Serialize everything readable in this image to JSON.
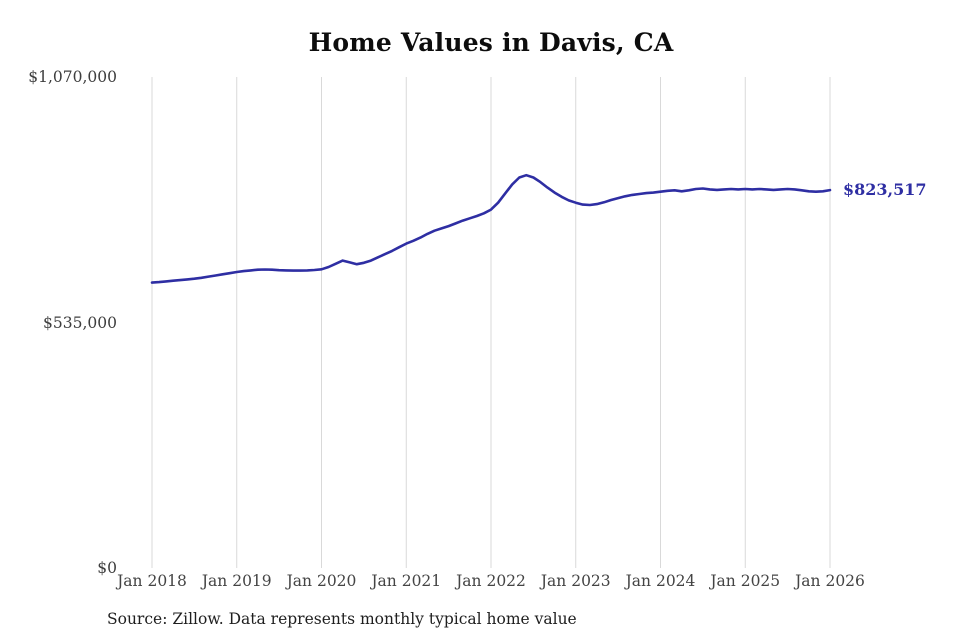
{
  "chart_data": {
    "type": "line",
    "title": "Home Values in Davis, CA",
    "series_name": "Monthly typical home value",
    "end_label": "$823,517",
    "end_value": 823517,
    "line_color": "#2e2ea3",
    "grid_color": "#d9d9d9",
    "ylim": [
      0,
      1070000
    ],
    "y_ticks": [
      {
        "value": 0,
        "label": "$0"
      },
      {
        "value": 535000,
        "label": "$535,000"
      },
      {
        "value": 1070000,
        "label": "$1,070,000"
      }
    ],
    "x_tick_labels": [
      "Jan 2018",
      "Jan 2019",
      "Jan 2020",
      "Jan 2021",
      "Jan 2022",
      "Jan 2023",
      "Jan 2024",
      "Jan 2025",
      "Jan 2026"
    ],
    "x_monthly_start": "Jan 2018",
    "x_monthly_end": "Jan 2026",
    "values": [
      622000,
      623000,
      624500,
      626000,
      627500,
      629000,
      630500,
      632500,
      635000,
      637500,
      640000,
      642500,
      645000,
      647000,
      648500,
      650000,
      650500,
      650000,
      649000,
      648500,
      648000,
      648000,
      648500,
      649500,
      651000,
      656000,
      663000,
      670000,
      666000,
      662000,
      665000,
      670000,
      677000,
      684000,
      691000,
      699000,
      707000,
      713000,
      720000,
      728000,
      735000,
      740000,
      745000,
      751000,
      757000,
      762000,
      767000,
      773000,
      781000,
      796000,
      816000,
      836000,
      851000,
      856000,
      851000,
      841000,
      829000,
      818000,
      809000,
      801000,
      796000,
      792000,
      791000,
      793000,
      797000,
      802000,
      806000,
      810000,
      813000,
      815000,
      817000,
      818000,
      820000,
      822000,
      823000,
      821000,
      823000,
      826000,
      827000,
      825000,
      824000,
      825000,
      826000,
      825000,
      826000,
      825000,
      826000,
      825000,
      824000,
      825000,
      826000,
      825000,
      823000,
      821000,
      820000,
      821000,
      823517
    ]
  },
  "footer": {
    "source": "Source: Zillow. Data represents monthly typical home value"
  }
}
